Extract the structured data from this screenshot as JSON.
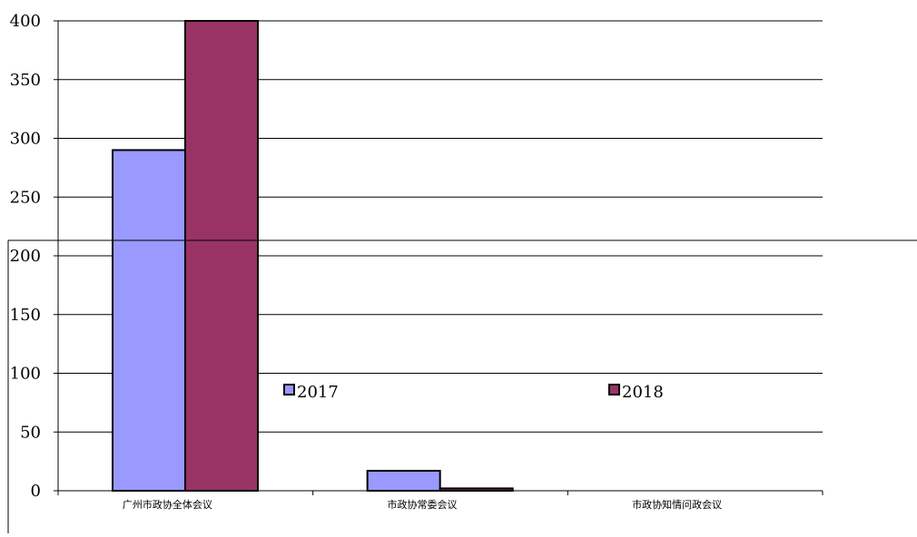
{
  "chart_data": {
    "type": "bar",
    "categories": [
      "广州市政协全体会议",
      "市政协常委会议",
      "市政协知情问政会议"
    ],
    "series": [
      {
        "name": "2017",
        "values": [
          290,
          17,
          0
        ],
        "color": "#9999ff"
      },
      {
        "name": "2018",
        "values": [
          400,
          2,
          0
        ],
        "color": "#993366"
      }
    ],
    "ylim": [
      0,
      400
    ],
    "yticks": [
      0,
      50,
      100,
      150,
      200,
      250,
      300,
      350,
      400
    ],
    "grid": true,
    "legend_position": "inside-middle"
  }
}
